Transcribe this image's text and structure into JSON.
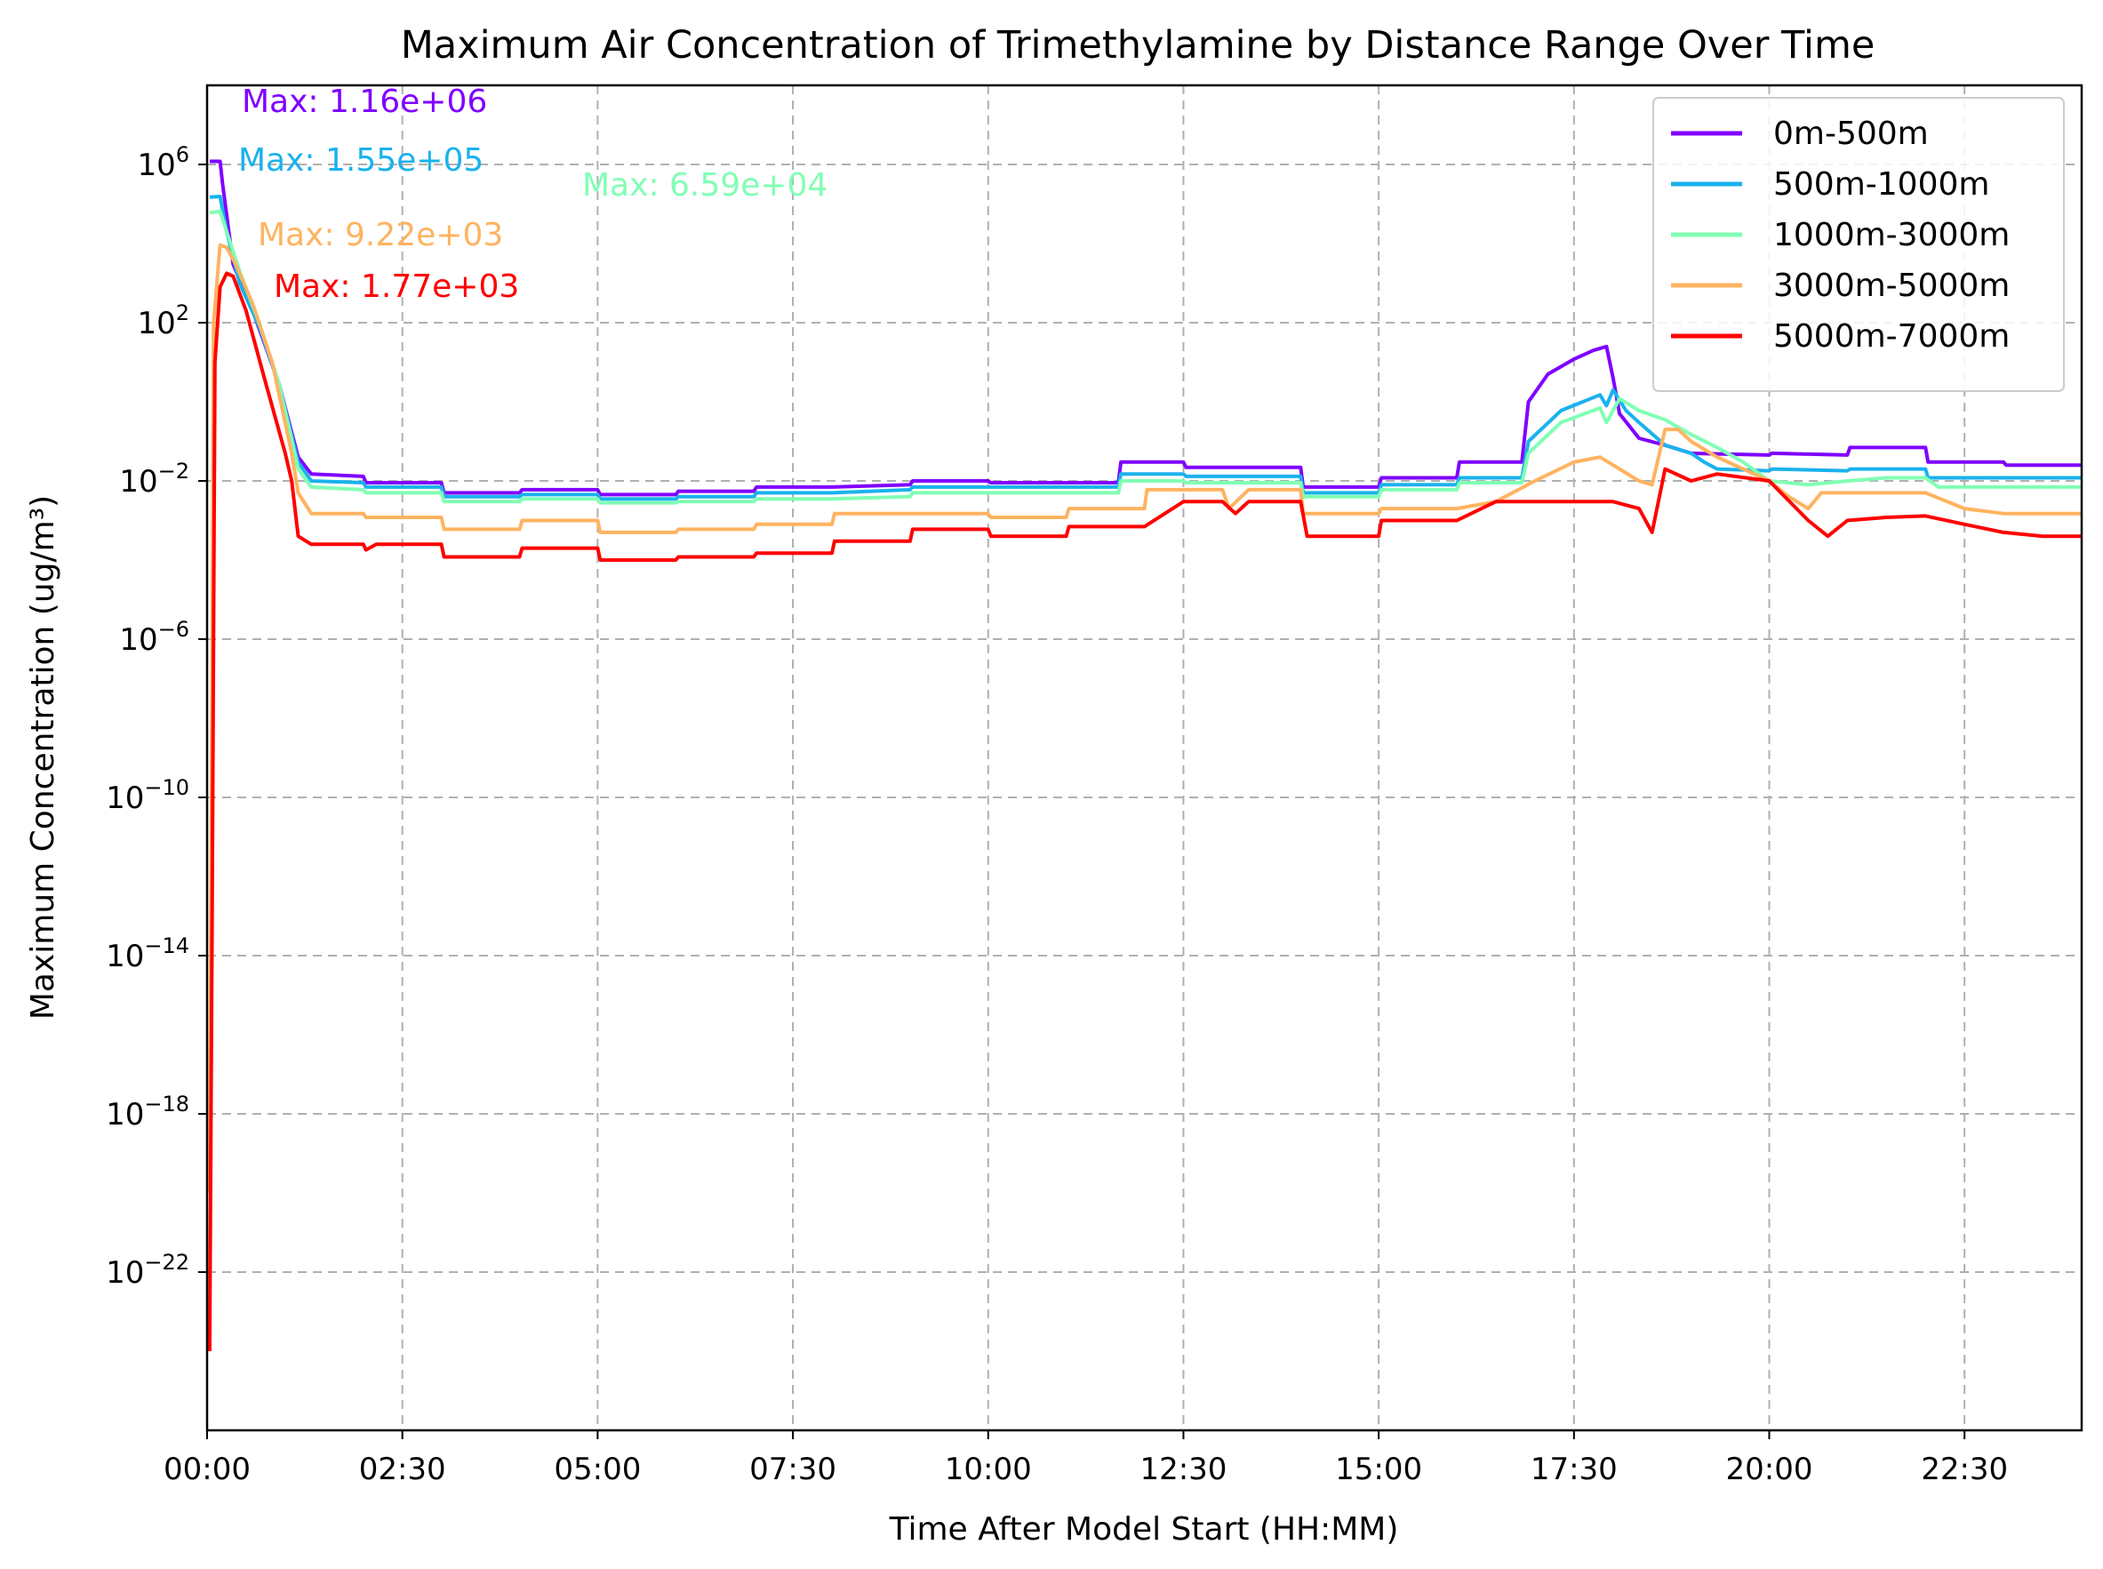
{
  "chart_data": {
    "type": "line",
    "title": "Maximum Air Concentration of Trimethylamine by Distance Range Over Time",
    "xlabel": "Time After Model Start (HH:MM)",
    "ylabel": "Maximum Concentration (ug/m³)",
    "y_scale": "log",
    "xlim": [
      "00:00",
      "24:00"
    ],
    "ylim": [
      1e-26,
      100000000.0
    ],
    "x_ticks": [
      "00:00",
      "02:30",
      "05:00",
      "07:30",
      "10:00",
      "12:30",
      "15:00",
      "17:30",
      "20:00",
      "22:30"
    ],
    "y_ticks": [
      {
        "base": "10",
        "exp": "6"
      },
      {
        "base": "10",
        "exp": "2"
      },
      {
        "base": "10",
        "exp": "−2"
      },
      {
        "base": "10",
        "exp": "−6"
      },
      {
        "base": "10",
        "exp": "−10"
      },
      {
        "base": "10",
        "exp": "−14"
      },
      {
        "base": "10",
        "exp": "−18"
      },
      {
        "base": "10",
        "exp": "−22"
      }
    ],
    "grid": true,
    "legend_position": "top-right",
    "series": [
      {
        "name": "0m-500m",
        "color": "#8000ff",
        "max_label": "Max: 1.16e+06",
        "points": [
          [
            "00:02",
            1200000.0
          ],
          [
            "00:10",
            1200000.0
          ],
          [
            "00:12",
            300000.0
          ],
          [
            "00:20",
            3000.0
          ],
          [
            "00:35",
            200
          ],
          [
            "00:55",
            3
          ],
          [
            "01:10",
            0.04
          ],
          [
            "01:20",
            0.015
          ],
          [
            "02:00",
            0.013
          ],
          [
            "02:02",
            0.009
          ],
          [
            "03:00",
            0.009
          ],
          [
            "03:02",
            0.005
          ],
          [
            "04:00",
            0.005
          ],
          [
            "04:02",
            0.006
          ],
          [
            "05:00",
            0.006
          ],
          [
            "05:02",
            0.0045
          ],
          [
            "06:00",
            0.0045
          ],
          [
            "06:02",
            0.0055
          ],
          [
            "07:00",
            0.0055
          ],
          [
            "07:02",
            0.007
          ],
          [
            "08:00",
            0.007
          ],
          [
            "09:00",
            0.008
          ],
          [
            "09:02",
            0.01
          ],
          [
            "10:00",
            0.01
          ],
          [
            "10:02",
            0.009
          ],
          [
            "11:40",
            0.009
          ],
          [
            "11:42",
            0.03
          ],
          [
            "12:30",
            0.03
          ],
          [
            "12:32",
            0.022
          ],
          [
            "14:00",
            0.022
          ],
          [
            "14:02",
            0.007
          ],
          [
            "15:00",
            0.007
          ],
          [
            "15:02",
            0.012
          ],
          [
            "16:00",
            0.012
          ],
          [
            "16:02",
            0.03
          ],
          [
            "16:50",
            0.03
          ],
          [
            "16:55",
            1
          ],
          [
            "17:10",
            5
          ],
          [
            "17:30",
            12
          ],
          [
            "17:45",
            20
          ],
          [
            "17:55",
            25
          ],
          [
            "18:00",
            4
          ],
          [
            "18:05",
            0.5
          ],
          [
            "18:20",
            0.12
          ],
          [
            "18:40",
            0.08
          ],
          [
            "19:00",
            0.05
          ],
          [
            "20:00",
            0.045
          ],
          [
            "20:02",
            0.05
          ],
          [
            "21:00",
            0.045
          ],
          [
            "21:02",
            0.07
          ],
          [
            "22:00",
            0.07
          ],
          [
            "22:02",
            0.03
          ],
          [
            "23:00",
            0.03
          ],
          [
            "23:02",
            0.025
          ],
          [
            "24:00",
            0.025
          ]
        ]
      },
      {
        "name": "500m-1000m",
        "color": "#1ab2ed",
        "max_label": "Max: 1.55e+05",
        "points": [
          [
            "00:02",
            150000.0
          ],
          [
            "00:10",
            155000.0
          ],
          [
            "00:15",
            20000.0
          ],
          [
            "00:25",
            1000.0
          ],
          [
            "00:40",
            80
          ],
          [
            "00:55",
            3
          ],
          [
            "01:10",
            0.03
          ],
          [
            "01:20",
            0.01
          ],
          [
            "02:00",
            0.009
          ],
          [
            "02:02",
            0.007
          ],
          [
            "03:00",
            0.007
          ],
          [
            "03:02",
            0.004
          ],
          [
            "04:00",
            0.004
          ],
          [
            "04:02",
            0.0045
          ],
          [
            "05:00",
            0.0045
          ],
          [
            "05:02",
            0.0035
          ],
          [
            "06:00",
            0.0035
          ],
          [
            "06:02",
            0.004
          ],
          [
            "07:00",
            0.004
          ],
          [
            "07:02",
            0.005
          ],
          [
            "08:00",
            0.005
          ],
          [
            "09:00",
            0.006
          ],
          [
            "09:02",
            0.007
          ],
          [
            "11:40",
            0.007
          ],
          [
            "11:42",
            0.015
          ],
          [
            "12:30",
            0.015
          ],
          [
            "12:32",
            0.013
          ],
          [
            "14:00",
            0.013
          ],
          [
            "14:02",
            0.005
          ],
          [
            "15:00",
            0.005
          ],
          [
            "15:02",
            0.008
          ],
          [
            "16:00",
            0.008
          ],
          [
            "16:02",
            0.012
          ],
          [
            "16:50",
            0.012
          ],
          [
            "16:55",
            0.1
          ],
          [
            "17:20",
            0.6
          ],
          [
            "17:50",
            1.5
          ],
          [
            "17:55",
            0.8
          ],
          [
            "18:00",
            2
          ],
          [
            "18:10",
            0.6
          ],
          [
            "18:20",
            0.3
          ],
          [
            "18:40",
            0.08
          ],
          [
            "19:00",
            0.05
          ],
          [
            "19:10",
            0.03
          ],
          [
            "19:20",
            0.02
          ],
          [
            "20:00",
            0.018
          ],
          [
            "20:02",
            0.02
          ],
          [
            "21:00",
            0.018
          ],
          [
            "21:02",
            0.02
          ],
          [
            "22:00",
            0.02
          ],
          [
            "22:02",
            0.012
          ],
          [
            "24:00",
            0.012
          ]
        ]
      },
      {
        "name": "1000m-3000m",
        "color": "#80ffb4",
        "max_label": "Max: 6.59e+04",
        "points": [
          [
            "00:02",
            60000.0
          ],
          [
            "00:10",
            65900.0
          ],
          [
            "00:15",
            20000.0
          ],
          [
            "00:25",
            2000.0
          ],
          [
            "00:40",
            100
          ],
          [
            "00:55",
            3
          ],
          [
            "01:10",
            0.02
          ],
          [
            "01:20",
            0.007
          ],
          [
            "02:00",
            0.006
          ],
          [
            "02:02",
            0.005
          ],
          [
            "03:00",
            0.005
          ],
          [
            "03:02",
            0.003
          ],
          [
            "04:00",
            0.003
          ],
          [
            "04:02",
            0.0035
          ],
          [
            "05:00",
            0.0035
          ],
          [
            "05:02",
            0.0028
          ],
          [
            "06:00",
            0.0028
          ],
          [
            "06:02",
            0.003
          ],
          [
            "07:00",
            0.003
          ],
          [
            "07:02",
            0.0035
          ],
          [
            "08:00",
            0.0035
          ],
          [
            "09:00",
            0.004
          ],
          [
            "09:02",
            0.005
          ],
          [
            "11:40",
            0.005
          ],
          [
            "11:42",
            0.01
          ],
          [
            "12:30",
            0.01
          ],
          [
            "12:32",
            0.009
          ],
          [
            "14:00",
            0.009
          ],
          [
            "14:02",
            0.004
          ],
          [
            "15:00",
            0.004
          ],
          [
            "15:02",
            0.006
          ],
          [
            "16:00",
            0.006
          ],
          [
            "16:02",
            0.009
          ],
          [
            "16:50",
            0.009
          ],
          [
            "16:55",
            0.05
          ],
          [
            "17:20",
            0.3
          ],
          [
            "17:50",
            0.7
          ],
          [
            "17:55",
            0.3
          ],
          [
            "18:05",
            1.2
          ],
          [
            "18:20",
            0.6
          ],
          [
            "18:40",
            0.35
          ],
          [
            "19:00",
            0.15
          ],
          [
            "19:20",
            0.07
          ],
          [
            "19:40",
            0.03
          ],
          [
            "20:00",
            0.01
          ],
          [
            "20:30",
            0.008
          ],
          [
            "21:00",
            0.01
          ],
          [
            "21:30",
            0.012
          ],
          [
            "22:00",
            0.012
          ],
          [
            "22:10",
            0.007
          ],
          [
            "24:00",
            0.007
          ]
        ]
      },
      {
        "name": "3000m-5000m",
        "color": "#ffb360",
        "max_label": "Max: 9.22e+03",
        "points": [
          [
            "00:02",
            1e-20
          ],
          [
            "00:05",
            100.0
          ],
          [
            "00:10",
            9220.0
          ],
          [
            "00:15",
            8000.0
          ],
          [
            "00:22",
            3000.0
          ],
          [
            "00:35",
            300
          ],
          [
            "00:50",
            10
          ],
          [
            "01:05",
            0.05
          ],
          [
            "01:10",
            0.005
          ],
          [
            "01:20",
            0.0015
          ],
          [
            "02:00",
            0.0015
          ],
          [
            "02:02",
            0.0012
          ],
          [
            "03:00",
            0.0012
          ],
          [
            "03:02",
            0.0006
          ],
          [
            "04:00",
            0.0006
          ],
          [
            "04:02",
            0.001
          ],
          [
            "05:00",
            0.001
          ],
          [
            "05:02",
            0.0005
          ],
          [
            "06:00",
            0.0005
          ],
          [
            "06:02",
            0.0006
          ],
          [
            "07:00",
            0.0006
          ],
          [
            "07:02",
            0.0008
          ],
          [
            "08:00",
            0.0008
          ],
          [
            "08:02",
            0.0015
          ],
          [
            "10:00",
            0.0015
          ],
          [
            "10:02",
            0.0012
          ],
          [
            "11:00",
            0.0012
          ],
          [
            "11:02",
            0.002
          ],
          [
            "12:00",
            0.002
          ],
          [
            "12:02",
            0.006
          ],
          [
            "12:30",
            0.006
          ],
          [
            "13:00",
            0.006
          ],
          [
            "13:05",
            0.002
          ],
          [
            "13:20",
            0.006
          ],
          [
            "14:00",
            0.006
          ],
          [
            "14:02",
            0.0015
          ],
          [
            "15:00",
            0.0015
          ],
          [
            "15:02",
            0.002
          ],
          [
            "16:00",
            0.002
          ],
          [
            "16:30",
            0.003
          ],
          [
            "17:00",
            0.01
          ],
          [
            "17:30",
            0.03
          ],
          [
            "17:50",
            0.04
          ],
          [
            "18:20",
            0.01
          ],
          [
            "18:30",
            0.008
          ],
          [
            "18:40",
            0.2
          ],
          [
            "18:50",
            0.2
          ],
          [
            "19:00",
            0.1
          ],
          [
            "19:20",
            0.04
          ],
          [
            "19:40",
            0.02
          ],
          [
            "20:00",
            0.01
          ],
          [
            "20:15",
            0.004
          ],
          [
            "20:30",
            0.002
          ],
          [
            "20:40",
            0.005
          ],
          [
            "21:00",
            0.005
          ],
          [
            "22:00",
            0.005
          ],
          [
            "22:30",
            0.002
          ],
          [
            "23:00",
            0.0015
          ],
          [
            "24:00",
            0.0015
          ]
        ]
      },
      {
        "name": "5000m-7000m",
        "color": "#ff0000",
        "max_label": "Max: 1.77e+03",
        "points": [
          [
            "00:02",
            1e-24
          ],
          [
            "00:04",
            1e-12
          ],
          [
            "00:06",
            10
          ],
          [
            "00:10",
            800
          ],
          [
            "00:15",
            1770.0
          ],
          [
            "00:20",
            1500.0
          ],
          [
            "00:30",
            200
          ],
          [
            "00:45",
            3
          ],
          [
            "01:00",
            0.05
          ],
          [
            "01:05",
            0.01
          ],
          [
            "01:10",
            0.0004
          ],
          [
            "01:20",
            0.00025
          ],
          [
            "02:00",
            0.00025
          ],
          [
            "02:02",
            0.00018
          ],
          [
            "02:10",
            0.00025
          ],
          [
            "03:00",
            0.00025
          ],
          [
            "03:02",
            0.00012
          ],
          [
            "04:00",
            0.00012
          ],
          [
            "04:02",
            0.0002
          ],
          [
            "05:00",
            0.0002
          ],
          [
            "05:02",
            0.0001
          ],
          [
            "06:00",
            0.0001
          ],
          [
            "06:02",
            0.00012
          ],
          [
            "07:00",
            0.00012
          ],
          [
            "07:02",
            0.00015
          ],
          [
            "08:00",
            0.00015
          ],
          [
            "08:02",
            0.0003
          ],
          [
            "09:00",
            0.0003
          ],
          [
            "09:02",
            0.0006
          ],
          [
            "10:00",
            0.0006
          ],
          [
            "10:02",
            0.0004
          ],
          [
            "11:00",
            0.0004
          ],
          [
            "11:02",
            0.0007
          ],
          [
            "12:00",
            0.0007
          ],
          [
            "12:30",
            0.003
          ],
          [
            "13:00",
            0.003
          ],
          [
            "13:10",
            0.0015
          ],
          [
            "13:20",
            0.003
          ],
          [
            "14:00",
            0.003
          ],
          [
            "14:05",
            0.0004
          ],
          [
            "15:00",
            0.0004
          ],
          [
            "15:02",
            0.001
          ],
          [
            "16:00",
            0.001
          ],
          [
            "16:30",
            0.003
          ],
          [
            "17:00",
            0.003
          ],
          [
            "18:00",
            0.003
          ],
          [
            "18:20",
            0.002
          ],
          [
            "18:30",
            0.0005
          ],
          [
            "18:40",
            0.02
          ],
          [
            "19:00",
            0.01
          ],
          [
            "19:20",
            0.015
          ],
          [
            "20:00",
            0.01
          ],
          [
            "20:30",
            0.001
          ],
          [
            "20:45",
            0.0004
          ],
          [
            "21:00",
            0.001
          ],
          [
            "21:30",
            0.0012
          ],
          [
            "22:00",
            0.0013
          ],
          [
            "22:30",
            0.0008
          ],
          [
            "23:00",
            0.0005
          ],
          [
            "23:30",
            0.0004
          ],
          [
            "24:00",
            0.0004
          ]
        ]
      }
    ]
  }
}
